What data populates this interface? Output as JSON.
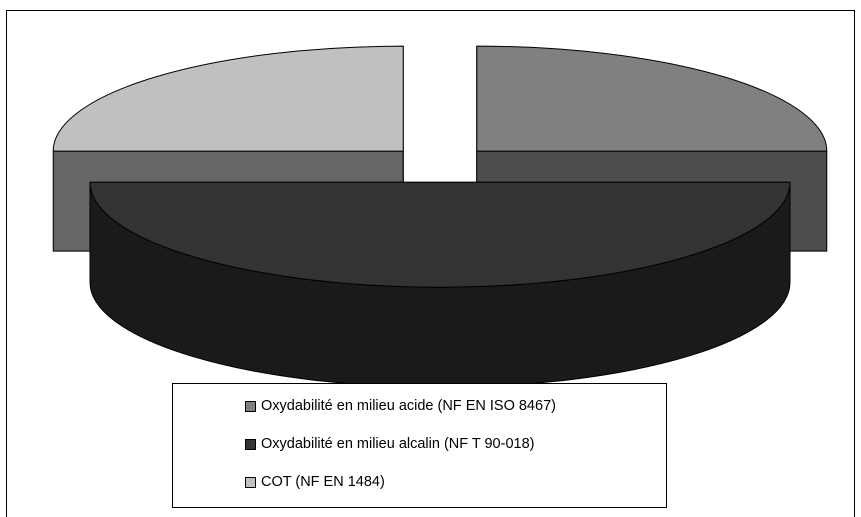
{
  "chart_data": {
    "type": "pie",
    "style": "3d-exploded",
    "title": "",
    "categories": [
      "Oxydabilité en milieu acide (NF EN ISO 8467)",
      "Oxydabilité en milieu alcalin (NF T 90-018)",
      "COT (NF EN 1484)"
    ],
    "values": [
      25,
      50,
      25
    ],
    "colors": {
      "top": [
        "#808080",
        "#333333",
        "#c0c0c0"
      ],
      "side": [
        "#4d4d4d",
        "#1a1a1a",
        "#666666"
      ]
    },
    "legend_position": "bottom"
  }
}
